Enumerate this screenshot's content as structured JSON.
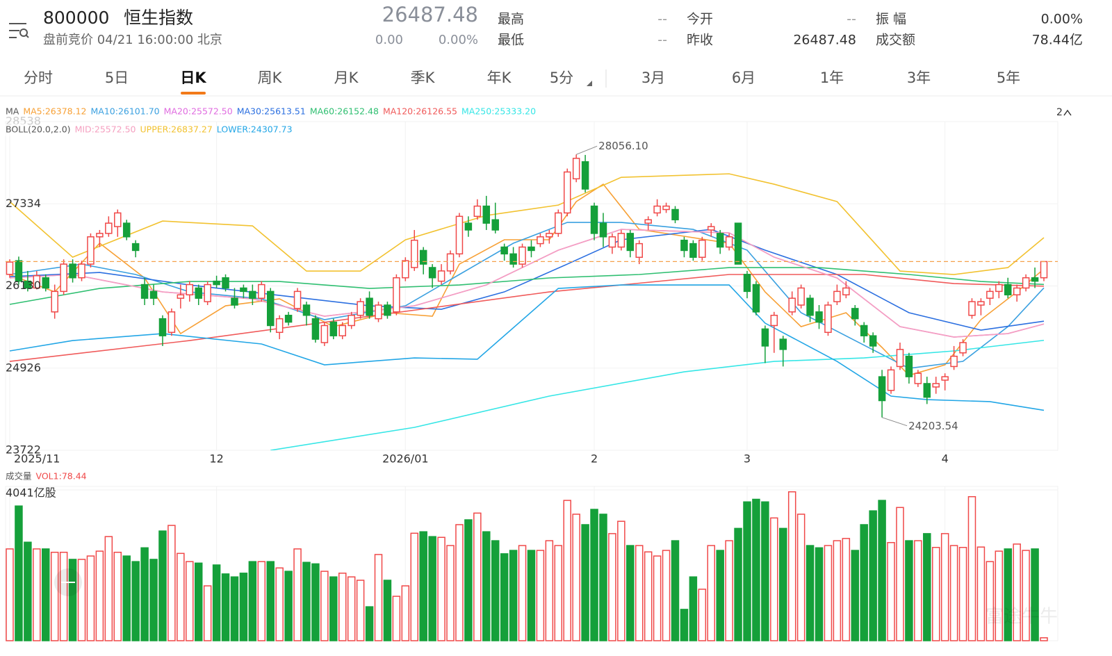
{
  "quote": {
    "code": "800000",
    "name": "恒生指数",
    "session": "盘前竞价 04/21 16:00:00 北京",
    "price": 26487.48,
    "change": "0.00",
    "change_pct": "0.00%",
    "fields": [
      {
        "label": "最高",
        "value": "--"
      },
      {
        "label": "最低",
        "value": "--"
      },
      {
        "label": "今开",
        "value": "--"
      },
      {
        "label": "昨收",
        "value": 26487.48
      },
      {
        "label": "振 幅",
        "value": "0.00%"
      },
      {
        "label": "成交额",
        "value": "78.44亿"
      }
    ]
  },
  "tabs": [
    "分时",
    "5日",
    "日K",
    "周K",
    "月K",
    "季K",
    "年K",
    "5分"
  ],
  "ranges": [
    "3月",
    "6月",
    "1年",
    "3年",
    "5年"
  ],
  "indicator_toggle": "2",
  "watermark": "富途牛牛",
  "chart_data": {
    "type": "candlestick",
    "up_color": "#f04848",
    "down_color": "#15a03a",
    "ylim": [
      23722,
      28538
    ],
    "yticks": [
      23722,
      24926,
      26130,
      27334,
      28538
    ],
    "categories": [
      "2025/11",
      null,
      null,
      null,
      null,
      null,
      null,
      null,
      null,
      null,
      null,
      null,
      null,
      null,
      null,
      null,
      null,
      null,
      null,
      null,
      null,
      null,
      null,
      "12",
      null,
      null,
      null,
      null,
      null,
      null,
      null,
      null,
      null,
      null,
      null,
      null,
      null,
      null,
      null,
      null,
      null,
      null,
      null,
      null,
      "2026/01",
      null,
      null,
      null,
      null,
      null,
      null,
      null,
      null,
      null,
      null,
      null,
      null,
      null,
      null,
      null,
      null,
      null,
      null,
      null,
      null,
      "2",
      null,
      null,
      null,
      null,
      null,
      null,
      null,
      null,
      null,
      null,
      null,
      null,
      null,
      null,
      null,
      null,
      "3",
      null,
      null,
      null,
      null,
      null,
      null,
      null,
      null,
      null,
      null,
      null,
      null,
      null,
      null,
      null,
      null,
      null,
      null,
      null,
      null,
      null,
      "4",
      null,
      null,
      null,
      null,
      null,
      null,
      null,
      null,
      null,
      null,
      null
    ],
    "ohlc": [
      [
        26300,
        26520,
        26250,
        26480
      ],
      [
        26500,
        26560,
        26150,
        26200
      ],
      [
        26200,
        26350,
        26050,
        26100
      ],
      [
        26100,
        26350,
        26080,
        26280
      ],
      [
        26250,
        26300,
        26050,
        26100
      ],
      [
        25750,
        26150,
        25650,
        26050
      ],
      [
        26050,
        26520,
        26000,
        26450
      ],
      [
        26450,
        26520,
        26180,
        26250
      ],
      [
        26250,
        26500,
        26200,
        26450
      ],
      [
        26450,
        26900,
        26400,
        26850
      ],
      [
        26850,
        26950,
        26700,
        26900
      ],
      [
        26900,
        27150,
        26850,
        27050
      ],
      [
        27000,
        27250,
        26850,
        27200
      ],
      [
        27050,
        27100,
        26800,
        26850
      ],
      [
        26750,
        26800,
        26550,
        26650
      ],
      [
        26150,
        26250,
        25850,
        25950
      ],
      [
        26050,
        26150,
        25850,
        25950
      ],
      [
        25650,
        25700,
        25250,
        25400
      ],
      [
        25450,
        25800,
        25400,
        25750
      ],
      [
        25950,
        26150,
        25800,
        26000
      ],
      [
        26000,
        26200,
        25900,
        26150
      ],
      [
        26100,
        26150,
        25850,
        25950
      ],
      [
        25900,
        26200,
        25850,
        26150
      ],
      [
        26200,
        26280,
        26100,
        26150
      ],
      [
        26250,
        26300,
        26050,
        26100
      ],
      [
        25950,
        26100,
        25800,
        25850
      ],
      [
        26100,
        26150,
        25950,
        26050
      ],
      [
        26050,
        26150,
        25850,
        25950
      ],
      [
        25950,
        26200,
        25900,
        26150
      ],
      [
        26050,
        26100,
        25450,
        25550
      ],
      [
        25450,
        25700,
        25350,
        25650
      ],
      [
        25700,
        25750,
        25550,
        25600
      ],
      [
        25800,
        26100,
        25750,
        26050
      ],
      [
        25850,
        25900,
        25550,
        25700
      ],
      [
        25650,
        25700,
        25300,
        25350
      ],
      [
        25300,
        25600,
        25250,
        25550
      ],
      [
        25600,
        25650,
        25350,
        25400
      ],
      [
        25400,
        25600,
        25350,
        25550
      ],
      [
        25550,
        25750,
        25500,
        25700
      ],
      [
        25700,
        25950,
        25650,
        25900
      ],
      [
        25950,
        26050,
        25650,
        25700
      ],
      [
        25650,
        25900,
        25600,
        25850
      ],
      [
        25850,
        25900,
        25650,
        25700
      ],
      [
        25750,
        26300,
        25700,
        26250
      ],
      [
        26250,
        26550,
        26200,
        26500
      ],
      [
        26400,
        26950,
        26350,
        26800
      ],
      [
        26650,
        26700,
        26300,
        26450
      ],
      [
        26400,
        26450,
        26100,
        26250
      ],
      [
        26200,
        26450,
        26150,
        26350
      ],
      [
        26350,
        26650,
        26300,
        26600
      ],
      [
        26600,
        27200,
        26550,
        27150
      ],
      [
        27050,
        27150,
        26850,
        26950
      ],
      [
        27150,
        27400,
        27100,
        27300
      ],
      [
        27300,
        27450,
        26950,
        27050
      ],
      [
        27100,
        27350,
        26900,
        26950
      ],
      [
        26700,
        26750,
        26500,
        26600
      ],
      [
        26600,
        26700,
        26400,
        26450
      ],
      [
        26450,
        26750,
        26400,
        26700
      ],
      [
        26700,
        26800,
        26550,
        26650
      ],
      [
        26750,
        26900,
        26700,
        26850
      ],
      [
        26850,
        26950,
        26750,
        26900
      ],
      [
        26900,
        27250,
        26850,
        27200
      ],
      [
        27200,
        27850,
        27150,
        27800
      ],
      [
        27700,
        28056.1,
        27650,
        28000
      ],
      [
        27950,
        28050,
        27500,
        27550
      ],
      [
        27300,
        27350,
        26800,
        26900
      ],
      [
        27050,
        27200,
        26700,
        26850
      ],
      [
        26700,
        26900,
        26600,
        26850
      ],
      [
        26700,
        26950,
        26650,
        26900
      ],
      [
        26900,
        26950,
        26550,
        26650
      ],
      [
        26550,
        26800,
        26450,
        26750
      ],
      [
        27050,
        27150,
        26950,
        27100
      ],
      [
        27200,
        27400,
        27150,
        27300
      ],
      [
        27250,
        27350,
        27200,
        27300
      ],
      [
        27250,
        27300,
        27050,
        27100
      ],
      [
        26800,
        26850,
        26550,
        26650
      ],
      [
        26750,
        26800,
        26500,
        26550
      ],
      [
        26550,
        26850,
        26500,
        26800
      ],
      [
        26950,
        27050,
        26850,
        27000
      ],
      [
        26900,
        26950,
        26600,
        26700
      ],
      [
        26700,
        26900,
        26650,
        26850
      ],
      [
        27050,
        27050,
        26450,
        26450
      ],
      [
        26300,
        26350,
        25950,
        26050
      ],
      [
        26150,
        26200,
        25700,
        25750
      ],
      [
        25500,
        25550,
        25000,
        25250
      ],
      [
        25550,
        25750,
        25150,
        25700
      ],
      [
        25350,
        25400,
        24950,
        25200
      ],
      [
        25750,
        26050,
        25700,
        25950
      ],
      [
        25850,
        26150,
        25800,
        26100
      ],
      [
        25950,
        26000,
        25600,
        25700
      ],
      [
        25750,
        25850,
        25500,
        25600
      ],
      [
        25450,
        25900,
        25400,
        25850
      ],
      [
        25900,
        26150,
        25850,
        26050
      ],
      [
        26000,
        26200,
        25950,
        26100
      ],
      [
        25800,
        25850,
        25550,
        25650
      ],
      [
        25550,
        25600,
        25300,
        25400
      ],
      [
        25400,
        25450,
        25150,
        25250
      ],
      [
        24800,
        24900,
        24203.54,
        24450
      ],
      [
        24600,
        24950,
        24550,
        24900
      ],
      [
        24950,
        25300,
        24900,
        25200
      ],
      [
        25100,
        25150,
        24700,
        24800
      ],
      [
        24700,
        24900,
        24650,
        24850
      ],
      [
        24700,
        24800,
        24400,
        24500
      ],
      [
        24650,
        24800,
        24550,
        24700
      ],
      [
        24750,
        24850,
        24600,
        24800
      ],
      [
        24950,
        25250,
        24900,
        25100
      ],
      [
        25150,
        25350,
        25100,
        25300
      ],
      [
        25700,
        25950,
        25650,
        25900
      ],
      [
        25850,
        25950,
        25700,
        25900
      ],
      [
        25950,
        26100,
        25850,
        26050
      ],
      [
        26050,
        26200,
        25950,
        26150
      ],
      [
        26150,
        26250,
        25950,
        26000
      ],
      [
        26000,
        26150,
        25900,
        26100
      ],
      [
        26100,
        26300,
        26050,
        26250
      ],
      [
        26250,
        26400,
        26100,
        26200
      ],
      [
        26250,
        26450,
        26200,
        26487.48
      ]
    ],
    "annotations": [
      "28056.10",
      "24203.54"
    ],
    "ma_title": "MA",
    "ma_lines": [
      {
        "name": "MA5:26378.12",
        "color": "#f7a035",
        "x": [
          0,
          5,
          10,
          15,
          19,
          24,
          30,
          36,
          42,
          47,
          50,
          55,
          60,
          63,
          66,
          70,
          75,
          80,
          84,
          88,
          93,
          97,
          100,
          104,
          108,
          112,
          115
        ],
        "values": [
          26298,
          26043,
          26756,
          26247,
          25432,
          25839,
          25941,
          25534,
          25738,
          25687,
          26450,
          26807,
          26807,
          27366,
          27621,
          26959,
          26858,
          26756,
          26043,
          25534,
          25738,
          25229,
          24821,
          24974,
          25636,
          26043,
          26378.12
        ]
      },
      {
        "name": "MA10:26101.70",
        "color": "#3aa0e0",
        "x": [
          0,
          8,
          14,
          20,
          28,
          35,
          44,
          50,
          56,
          62,
          68,
          76,
          82,
          88,
          94,
          100,
          106,
          111,
          115
        ],
        "values": [
          26298,
          26450,
          26298,
          26043,
          25941,
          25636,
          25839,
          26298,
          26756,
          27061,
          27061,
          26959,
          26654,
          25738,
          25330,
          24923,
          25025,
          25534,
          26101.7
        ]
      },
      {
        "name": "MA20:25572.50",
        "color": "#e06ce0",
        "x": [
          0,
          7,
          17,
          27,
          35,
          45,
          53,
          61,
          68,
          80,
          85,
          92,
          99,
          105,
          111,
          115
        ],
        "values": [
          26247,
          26298,
          26043,
          25941,
          25687,
          25839,
          26145,
          26654,
          26959,
          26908,
          26552,
          26247,
          25534,
          25381,
          25432,
          25572.5
        ]
      },
      {
        "name": "MA30:25613.51",
        "color": "#2b6fe0",
        "x": [
          0,
          10,
          20,
          30,
          40,
          48,
          55,
          62,
          68,
          78,
          84,
          92,
          100,
          108,
          115
        ],
        "values": [
          26267,
          26328,
          26145,
          25992,
          25839,
          25788,
          26043,
          26450,
          26807,
          26959,
          26654,
          26298,
          25738,
          25483,
          25613.51
        ]
      },
      {
        "name": "MA60:26152.48",
        "color": "#2fbf71",
        "x": [
          0,
          10,
          20,
          30,
          40,
          50,
          60,
          70,
          80,
          90,
          100,
          108,
          115
        ],
        "values": [
          25860,
          26094,
          26196,
          26196,
          26094,
          26145,
          26247,
          26298,
          26399,
          26399,
          26298,
          26196,
          26152.48
        ]
      },
      {
        "name": "MA120:26126.55",
        "color": "#f05a5a",
        "x": [
          0,
          20,
          40,
          60,
          80,
          95,
          105,
          115
        ],
        "values": [
          25025,
          25330,
          25687,
          26043,
          26298,
          26298,
          26165,
          26126.55
        ]
      },
      {
        "name": "MA250:25333.20",
        "color": "#35e6e6",
        "x": [
          29,
          45,
          60,
          75,
          85,
          95,
          105,
          115
        ],
        "values": [
          23722,
          24058,
          24516,
          24872,
          25025,
          25076,
          25178,
          25333.2
        ]
      }
    ],
    "boll_title": "BOLL(20.0,2.0)",
    "boll_lines": [
      {
        "name": "MID:25572.50",
        "color": "#f5a0c0",
        "x": [
          0,
          7,
          17,
          27,
          35,
          45,
          53,
          61,
          68,
          80,
          85,
          92,
          99,
          105,
          111,
          115
        ],
        "values": [
          26247,
          26298,
          26043,
          25941,
          25687,
          25839,
          26145,
          26654,
          26959,
          26908,
          26552,
          26247,
          25534,
          25381,
          25432,
          25572.5
        ]
      },
      {
        "name": "UPPER:26837.27",
        "color": "#f2c230",
        "x": [
          0,
          7,
          17,
          27,
          33,
          39,
          44,
          53,
          61,
          68,
          80,
          85,
          92,
          99,
          105,
          111,
          115
        ],
        "values": [
          27366,
          26552,
          27081,
          27010,
          26348,
          26348,
          26806,
          27163,
          27315,
          27722,
          27773,
          27621,
          27366,
          26348,
          26297,
          26399,
          26837.27
        ]
      },
      {
        "name": "LOWER:24307.73",
        "color": "#22a6e6",
        "x": [
          0,
          7,
          17,
          28,
          35,
          45,
          52,
          61,
          68,
          80,
          84,
          92,
          98,
          102,
          109,
          115
        ],
        "values": [
          25178,
          25330,
          25432,
          25280,
          24974,
          25076,
          25056,
          26094,
          26145,
          26145,
          25585,
          25025,
          24516,
          24465,
          24435,
          24307.73
        ]
      }
    ],
    "volume_title": "成交量",
    "volume_label": "VOL1:78.44",
    "vol_ylim": [
      0,
      4041
    ],
    "vol_yticks": [
      {
        "value": 4041,
        "label": "4041亿股"
      }
    ],
    "volume": [
      2460,
      3610,
      2640,
      2460,
      2460,
      2370,
      2370,
      2180,
      2180,
      2270,
      2400,
      2790,
      2370,
      2270,
      2120,
      2490,
      2180,
      2940,
      3090,
      2340,
      2120,
      2080,
      1470,
      2030,
      1790,
      1710,
      1810,
      2120,
      2120,
      2120,
      1950,
      1860,
      2460,
      2100,
      2060,
      1860,
      1710,
      1810,
      1710,
      1620,
      910,
      2310,
      1620,
      1190,
      1470,
      2880,
      2920,
      2790,
      2770,
      2550,
      3110,
      3240,
      3420,
      2920,
      2680,
      2330,
      2420,
      2550,
      2420,
      2420,
      2680,
      2550,
      3760,
      3390,
      3110,
      3520,
      3390,
      2870,
      3200,
      2550,
      2550,
      2380,
      2270,
      2420,
      2680,
      840,
      1710,
      1380,
      2550,
      2420,
      2680,
      3010,
      3720,
      3790,
      3720,
      3290,
      3010,
      3990,
      3390,
      2550,
      2490,
      2550,
      2680,
      2740,
      2420,
      3110,
      3480,
      3760,
      2630,
      3570,
      2680,
      2680,
      2870,
      2500,
      2870,
      2550,
      2500,
      3860,
      2510,
      2120,
      2400,
      2460,
      2590,
      2420,
      2460,
      78.44
    ]
  }
}
